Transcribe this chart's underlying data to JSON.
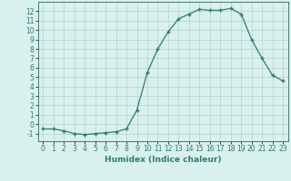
{
  "title": "",
  "xlabel": "Humidex (Indice chaleur)",
  "ylabel": "",
  "x": [
    0,
    1,
    2,
    3,
    4,
    5,
    6,
    7,
    8,
    9,
    10,
    11,
    12,
    13,
    14,
    15,
    16,
    17,
    18,
    19,
    20,
    21,
    22,
    23
  ],
  "y": [
    -0.5,
    -0.5,
    -0.7,
    -1.0,
    -1.1,
    -1.0,
    -0.9,
    -0.8,
    -0.5,
    1.5,
    5.5,
    8.0,
    9.8,
    11.2,
    11.7,
    12.2,
    12.1,
    12.1,
    12.3,
    11.7,
    9.0,
    7.0,
    5.2,
    4.6
  ],
  "line_color": "#2e7d6e",
  "marker": "+",
  "markersize": 3,
  "markeredgewidth": 1.0,
  "linewidth": 0.9,
  "linestyle": "-",
  "bg_color": "#d8f0ee",
  "grid_color": "#b8d0ce",
  "xlim": [
    -0.5,
    23.5
  ],
  "ylim": [
    -1.8,
    13.0
  ],
  "yticks": [
    -1,
    0,
    1,
    2,
    3,
    4,
    5,
    6,
    7,
    8,
    9,
    10,
    11,
    12
  ],
  "xticks": [
    0,
    1,
    2,
    3,
    4,
    5,
    6,
    7,
    8,
    9,
    10,
    11,
    12,
    13,
    14,
    15,
    16,
    17,
    18,
    19,
    20,
    21,
    22,
    23
  ],
  "tick_fontsize": 5.5,
  "xlabel_fontsize": 6.5,
  "spine_color": "#336655"
}
